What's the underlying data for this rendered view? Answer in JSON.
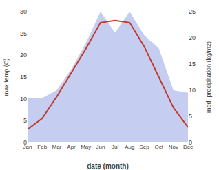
{
  "chart_data": {
    "type": "line",
    "xlabel": "date (month)",
    "ylabel": "max temp (C)",
    "y2label": "med. precipitation (kg/m2)",
    "categories": [
      "Jan",
      "Feb",
      "Mar",
      "Apr",
      "May",
      "Jun",
      "Jul",
      "Aug",
      "Sep",
      "Oct",
      "Nov",
      "Dec"
    ],
    "series": [
      {
        "type": "area",
        "axis": "y2",
        "color": "#c5cef0",
        "values": [
          8.5,
          8.5,
          10.0,
          14.0,
          19.0,
          25.0,
          21.0,
          25.0,
          20.5,
          18.0,
          10.0,
          9.5
        ]
      },
      {
        "type": "line",
        "color": "#c0392b",
        "values": [
          3.0,
          5.5,
          10.5,
          16.0,
          21.5,
          27.5,
          28.0,
          27.5,
          22.0,
          15.0,
          8.0,
          3.5
        ]
      }
    ],
    "ylim": [
      0,
      30
    ],
    "yticks": [
      0,
      5,
      10,
      15,
      20,
      25,
      30
    ],
    "y2lim": [
      0,
      25
    ],
    "y2ticks": [
      0,
      5,
      10,
      15,
      20,
      25
    ],
    "grid": false,
    "background_color": "#ffffff"
  }
}
